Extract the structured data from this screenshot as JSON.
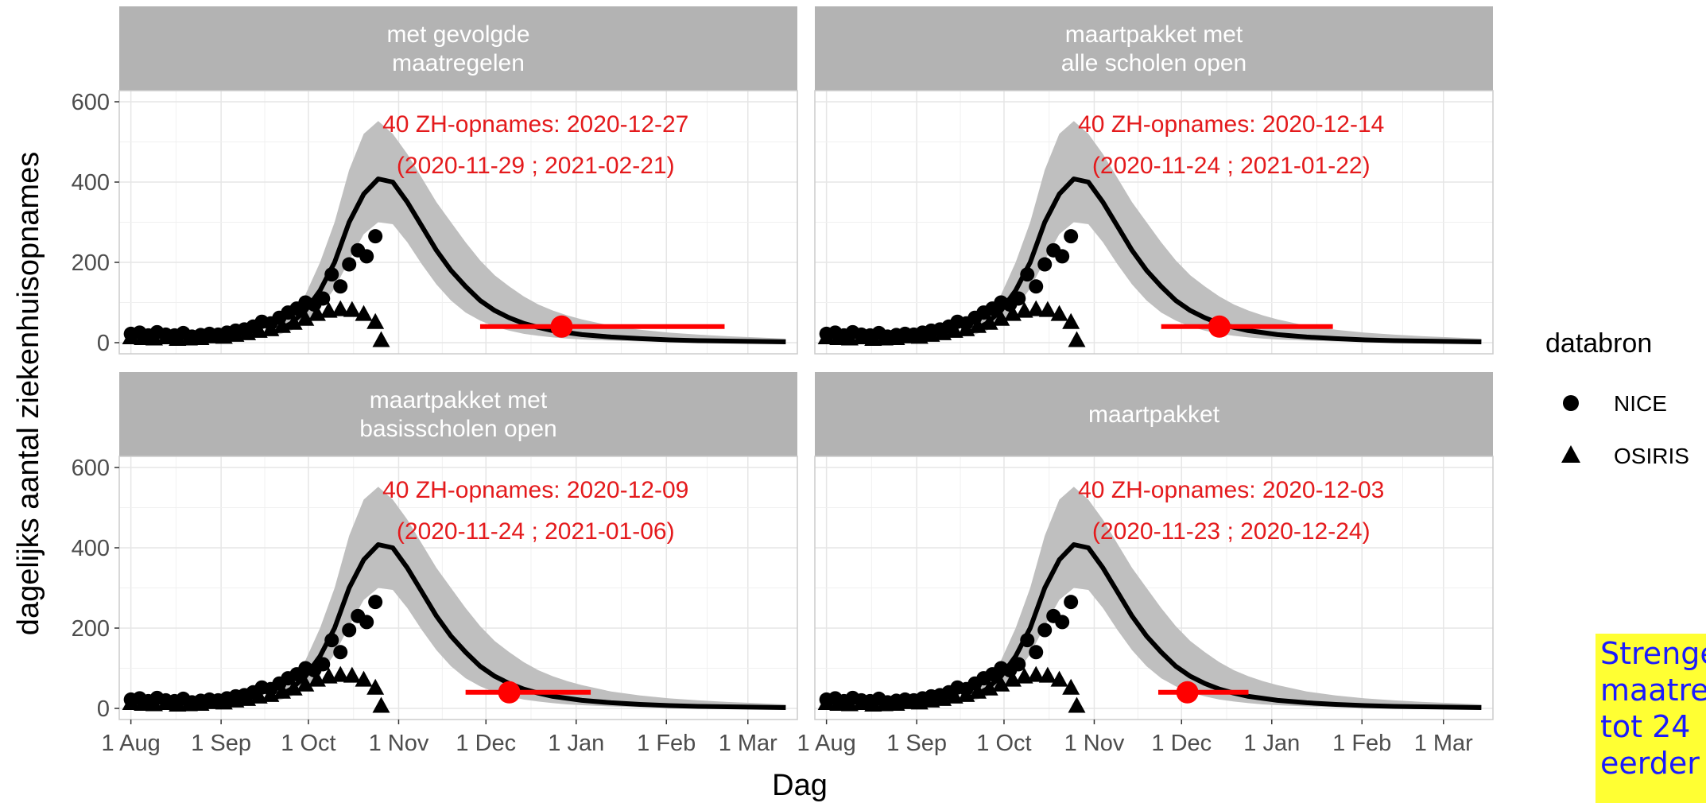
{
  "chart_data": {
    "type": "line",
    "layout": "facet grid 2x2",
    "xlabel": "Dag",
    "ylabel": "dagelijks aantal ziekenhuisopnames",
    "ylim": [
      0,
      600
    ],
    "y_ticks": [
      "0",
      "200",
      "400",
      "600"
    ],
    "y_tick_values": [
      0,
      200,
      400,
      600
    ],
    "xlim": [
      "2020-07-28",
      "2021-03-18"
    ],
    "x_ticks": [
      "1 Aug",
      "1 Sep",
      "1 Oct",
      "1 Nov",
      "1 Dec",
      "1 Jan",
      "1 Feb",
      "1 Mar"
    ],
    "x_tick_values": [
      "2020-08-01",
      "2020-09-01",
      "2020-10-01",
      "2020-11-01",
      "2020-12-01",
      "2021-01-01",
      "2021-02-01",
      "2021-03-01"
    ],
    "grid": true,
    "legend": {
      "title": "databron",
      "position": "right",
      "entries": [
        {
          "label": "NICE",
          "shape": "circle"
        },
        {
          "label": "OSIRIS",
          "shape": "triangle"
        }
      ]
    },
    "colors": {
      "strip": "#b3b3b3",
      "ribbon": "#bfbfbf",
      "line": "#000000",
      "points": "#000000",
      "annotation": "#e41a1c",
      "highlight_marker": "#ff0000",
      "grid": "#e6e6e6",
      "note_background": "#ffff33",
      "note_text": "#1a1aff"
    },
    "model_curve": {
      "dates": [
        "2020-09-20",
        "2020-09-25",
        "2020-09-30",
        "2020-10-05",
        "2020-10-10",
        "2020-10-15",
        "2020-10-20",
        "2020-10-25",
        "2020-10-30",
        "2020-11-04",
        "2020-11-09",
        "2020-11-14",
        "2020-11-19",
        "2020-11-24",
        "2020-11-29",
        "2020-12-04",
        "2020-12-09",
        "2020-12-14",
        "2020-12-19",
        "2020-12-24",
        "2020-12-29",
        "2021-01-03",
        "2021-01-13",
        "2021-01-23",
        "2021-02-02",
        "2021-02-12",
        "2021-02-22",
        "2021-03-04",
        "2021-03-14"
      ],
      "median": [
        28,
        48,
        80,
        130,
        200,
        300,
        370,
        408,
        400,
        350,
        290,
        230,
        180,
        140,
        105,
        80,
        62,
        48,
        38,
        30,
        25,
        20,
        14,
        10,
        7,
        5,
        4,
        3,
        2
      ],
      "lower": [
        18,
        30,
        50,
        85,
        135,
        205,
        270,
        300,
        295,
        250,
        195,
        145,
        105,
        75,
        55,
        40,
        30,
        22,
        17,
        13,
        10,
        8,
        5,
        3,
        2,
        1,
        1,
        1,
        0
      ],
      "upper": [
        40,
        70,
        120,
        200,
        300,
        430,
        520,
        552,
        520,
        470,
        410,
        350,
        300,
        250,
        205,
        168,
        140,
        115,
        95,
        80,
        68,
        58,
        42,
        32,
        25,
        20,
        16,
        13,
        10
      ]
    },
    "nice": {
      "dates": [
        "2020-08-01",
        "2020-08-04",
        "2020-08-07",
        "2020-08-10",
        "2020-08-13",
        "2020-08-16",
        "2020-08-19",
        "2020-08-22",
        "2020-08-25",
        "2020-08-28",
        "2020-08-31",
        "2020-09-03",
        "2020-09-06",
        "2020-09-09",
        "2020-09-12",
        "2020-09-15",
        "2020-09-18",
        "2020-09-21",
        "2020-09-24",
        "2020-09-27",
        "2020-09-30",
        "2020-10-03",
        "2020-10-06",
        "2020-10-09",
        "2020-10-12",
        "2020-10-15",
        "2020-10-18",
        "2020-10-21",
        "2020-10-24"
      ],
      "values": [
        22,
        25,
        18,
        26,
        20,
        18,
        24,
        15,
        19,
        22,
        20,
        25,
        30,
        33,
        40,
        52,
        48,
        62,
        75,
        85,
        100,
        95,
        110,
        170,
        140,
        195,
        230,
        215,
        265
      ]
    },
    "osiris": {
      "dates": [
        "2020-08-01",
        "2020-08-05",
        "2020-08-09",
        "2020-08-13",
        "2020-08-17",
        "2020-08-21",
        "2020-08-25",
        "2020-08-29",
        "2020-09-02",
        "2020-09-06",
        "2020-09-10",
        "2020-09-14",
        "2020-09-18",
        "2020-09-22",
        "2020-09-26",
        "2020-09-30",
        "2020-10-04",
        "2020-10-08",
        "2020-10-12",
        "2020-10-16",
        "2020-10-20",
        "2020-10-24",
        "2020-10-26"
      ],
      "values": [
        12,
        10,
        9,
        12,
        8,
        9,
        10,
        14,
        13,
        18,
        22,
        28,
        32,
        40,
        48,
        58,
        70,
        78,
        82,
        80,
        70,
        50,
        5
      ]
    },
    "panels": [
      {
        "strip": [
          "met gevolgde",
          "maatregelen"
        ],
        "annotation": [
          "40 ZH-opnames: 2020-12-27",
          "(2020-11-29 ; 2021-02-21)"
        ],
        "threshold_value": 40,
        "threshold_date": "2020-12-27",
        "interval": [
          "2020-11-29",
          "2021-02-21"
        ]
      },
      {
        "strip": [
          "maartpakket met",
          "alle scholen open"
        ],
        "annotation": [
          "40 ZH-opnames: 2020-12-14",
          "(2020-11-24 ; 2021-01-22)"
        ],
        "threshold_value": 40,
        "threshold_date": "2020-12-14",
        "interval": [
          "2020-11-24",
          "2021-01-22"
        ]
      },
      {
        "strip": [
          "maartpakket met",
          "basisscholen open"
        ],
        "annotation": [
          "40 ZH-opnames: 2020-12-09",
          "(2020-11-24 ; 2021-01-06)"
        ],
        "threshold_value": 40,
        "threshold_date": "2020-12-09",
        "interval": [
          "2020-11-24",
          "2021-01-06"
        ]
      },
      {
        "strip": [
          "maartpakket"
        ],
        "annotation": [
          "40 ZH-opnames: 2020-12-03",
          "(2020-11-23 ; 2020-12-24)"
        ],
        "threshold_value": 40,
        "threshold_date": "2020-12-03",
        "interval": [
          "2020-11-23",
          "2020-12-24"
        ]
      }
    ]
  },
  "note": {
    "lines": [
      "Strengere",
      "maatregelen",
      " tot 24",
      "eerder"
    ]
  }
}
